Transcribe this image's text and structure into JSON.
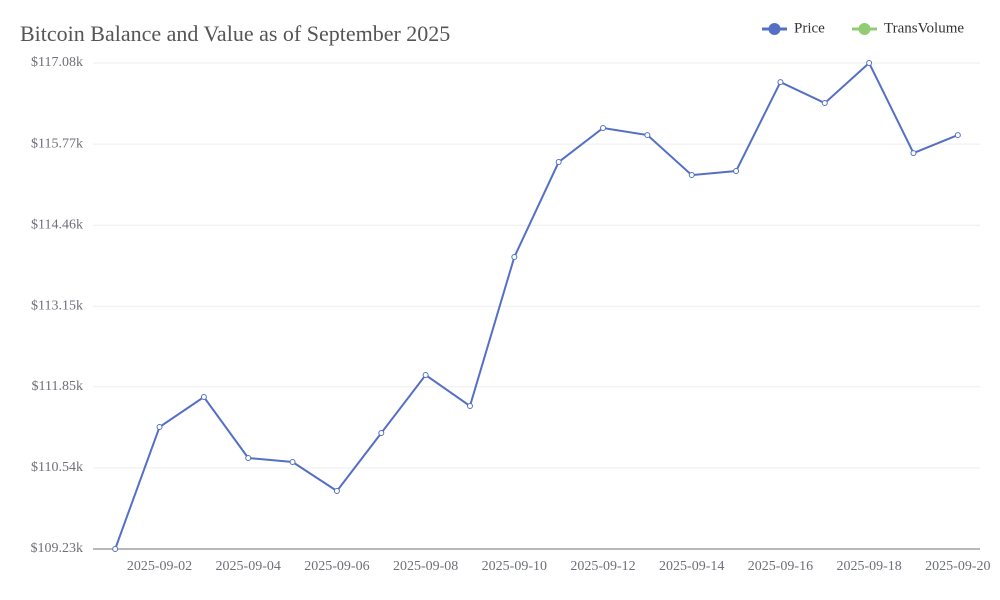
{
  "chart_data": {
    "type": "line",
    "title": "Bitcoin Balance and Value as of September 2025",
    "categories": [
      null,
      "2025-09-02",
      null,
      "2025-09-04",
      null,
      "2025-09-06",
      null,
      "2025-09-08",
      null,
      "2025-09-10",
      null,
      "2025-09-12",
      null,
      "2025-09-14",
      null,
      "2025-09-16",
      null,
      "2025-09-18",
      null,
      "2025-09-20"
    ],
    "series": [
      {
        "name": "Price",
        "color": "#5470c6",
        "values": [
          109230,
          111200,
          111685,
          110700,
          110635,
          110167,
          111103,
          112040,
          111540,
          113946,
          115480,
          116030,
          115916,
          115270,
          115335,
          116772,
          116433,
          117080,
          115625,
          115916
        ]
      },
      {
        "name": "TransVolume",
        "color": "#91cc75",
        "values": [
          null,
          null,
          null,
          null,
          null,
          null,
          null,
          null,
          null,
          null,
          null,
          null,
          null,
          null,
          null,
          null,
          null,
          null,
          null,
          null
        ]
      }
    ],
    "ylim": [
      109230,
      117080
    ],
    "yticks": [
      {
        "value": 109230,
        "label": "$109.23k"
      },
      {
        "value": 110540,
        "label": "$110.54k"
      },
      {
        "value": 111850,
        "label": "$111.85k"
      },
      {
        "value": 113150,
        "label": "$113.15k"
      },
      {
        "value": 114460,
        "label": "$114.46k"
      },
      {
        "value": 115770,
        "label": "$115.77k"
      },
      {
        "value": 117080,
        "label": "$117.08k"
      }
    ],
    "grid": true,
    "legend": "top-right"
  }
}
